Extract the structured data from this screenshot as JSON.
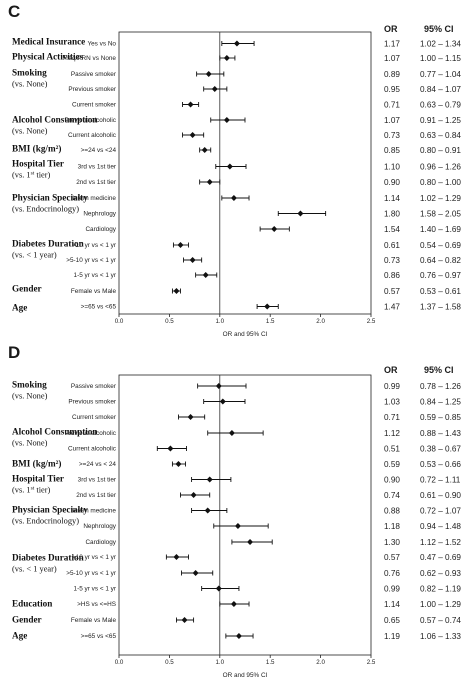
{
  "headers": {
    "or": "OR",
    "ci": "95% CI"
  },
  "chart_data": [
    {
      "type": "forest",
      "panel": "C",
      "xlabel": "OR and 95% CI",
      "xlim": [
        0,
        2.5
      ],
      "ticks": [
        "0.0",
        "0.5",
        "1.0",
        "1.5",
        "2.0",
        "2.5"
      ],
      "reference_line": 1.0,
      "groups": [
        {
          "title": "Medical Insurance",
          "subtitle": "",
          "rows": [
            {
              "label": "Yes vs No",
              "or": 1.17,
              "lo": 1.02,
              "hi": 1.34,
              "or_text": "1.17",
              "ci_text": "1.02 – 1.34"
            }
          ]
        },
        {
          "title": "Physical Activities",
          "subtitle": "",
          "rows": [
            {
              "label": "Freq/PRN vs None",
              "or": 1.07,
              "lo": 1.0,
              "hi": 1.15,
              "or_text": "1.07",
              "ci_text": "1.00 – 1.15"
            }
          ]
        },
        {
          "title": "Smoking",
          "subtitle": "(vs. None)",
          "rows": [
            {
              "label": "Passive smoker",
              "or": 0.89,
              "lo": 0.77,
              "hi": 1.04,
              "or_text": "0.89",
              "ci_text": "0.77 – 1.04"
            },
            {
              "label": "Previous smoker",
              "or": 0.95,
              "lo": 0.84,
              "hi": 1.07,
              "or_text": "0.95",
              "ci_text": "0.84 – 1.07"
            },
            {
              "label": "Current smoker",
              "or": 0.71,
              "lo": 0.63,
              "hi": 0.79,
              "or_text": "0.71",
              "ci_text": "0.63 – 0.79"
            }
          ]
        },
        {
          "title": "Alcohol Consumption",
          "subtitle": "(vs. None)",
          "rows": [
            {
              "label": "Previous alcoholic",
              "or": 1.07,
              "lo": 0.91,
              "hi": 1.25,
              "or_text": "1.07",
              "ci_text": "0.91 – 1.25"
            },
            {
              "label": "Current alcoholic",
              "or": 0.73,
              "lo": 0.63,
              "hi": 0.84,
              "or_text": "0.73",
              "ci_text": "0.63 – 0.84"
            }
          ]
        },
        {
          "title": "BMI (kg/m²)",
          "subtitle": "",
          "rows": [
            {
              "label": ">=24 vs <24",
              "or": 0.85,
              "lo": 0.8,
              "hi": 0.91,
              "or_text": "0.85",
              "ci_text": "0.80 – 0.91"
            }
          ]
        },
        {
          "title": "Hospital Tier",
          "subtitle": "(vs. 1st tier)",
          "rows": [
            {
              "label": "3rd vs 1st tier",
              "or": 1.1,
              "lo": 0.96,
              "hi": 1.26,
              "or_text": "1.10",
              "ci_text": "0.96 – 1.26"
            },
            {
              "label": "2nd vs 1st tier",
              "or": 0.9,
              "lo": 0.8,
              "hi": 1.0,
              "or_text": "0.90",
              "ci_text": "0.80 – 1.00"
            }
          ]
        },
        {
          "title": "Physician Specialty",
          "subtitle": "(vs. Endocrinology)",
          "rows": [
            {
              "label": "Intern medicine",
              "or": 1.14,
              "lo": 1.02,
              "hi": 1.29,
              "or_text": "1.14",
              "ci_text": "1.02 – 1.29"
            },
            {
              "label": "Nephrology",
              "or": 1.8,
              "lo": 1.58,
              "hi": 2.05,
              "or_text": "1.80",
              "ci_text": "1.58 – 2.05"
            },
            {
              "label": "Cardiology",
              "or": 1.54,
              "lo": 1.4,
              "hi": 1.69,
              "or_text": "1.54",
              "ci_text": "1.40 – 1.69"
            }
          ]
        },
        {
          "title": "Diabetes Duration",
          "subtitle": "(vs. < 1 year)",
          "rows": [
            {
              "label": ">10 yr vs < 1 yr",
              "or": 0.61,
              "lo": 0.54,
              "hi": 0.69,
              "or_text": "0.61",
              "ci_text": "0.54 – 0.69"
            },
            {
              "label": ">5-10 yr vs < 1 yr",
              "or": 0.73,
              "lo": 0.64,
              "hi": 0.82,
              "or_text": "0.73",
              "ci_text": "0.64 – 0.82"
            },
            {
              "label": "1-5 yr vs < 1 yr",
              "or": 0.86,
              "lo": 0.76,
              "hi": 0.97,
              "or_text": "0.86",
              "ci_text": "0.76 – 0.97"
            }
          ]
        },
        {
          "title": "Gender",
          "subtitle": "",
          "rows": [
            {
              "label": "Female vs Male",
              "or": 0.57,
              "lo": 0.53,
              "hi": 0.61,
              "or_text": "0.57",
              "ci_text": "0.53 – 0.61"
            }
          ]
        },
        {
          "title": "Age",
          "subtitle": "",
          "rows": [
            {
              "label": ">=65 vs <65",
              "or": 1.47,
              "lo": 1.37,
              "hi": 1.58,
              "or_text": "1.47",
              "ci_text": "1.37 – 1.58"
            }
          ]
        }
      ]
    },
    {
      "type": "forest",
      "panel": "D",
      "xlabel": "OR and 95% CI",
      "xlim": [
        0,
        2.5
      ],
      "ticks": [
        "0.0",
        "0.5",
        "1.0",
        "1.5",
        "2.0",
        "2.5"
      ],
      "reference_line": 1.0,
      "groups": [
        {
          "title": "Smoking",
          "subtitle": "(vs. None)",
          "rows": [
            {
              "label": "Passive smoker",
              "or": 0.99,
              "lo": 0.78,
              "hi": 1.26,
              "or_text": "0.99",
              "ci_text": "0.78 – 1.26"
            },
            {
              "label": "Previous smoker",
              "or": 1.03,
              "lo": 0.84,
              "hi": 1.25,
              "or_text": "1.03",
              "ci_text": "0.84 – 1.25"
            },
            {
              "label": "Current smoker",
              "or": 0.71,
              "lo": 0.59,
              "hi": 0.85,
              "or_text": "0.71",
              "ci_text": "0.59 – 0.85"
            }
          ]
        },
        {
          "title": "Alcohol Consumption",
          "subtitle": "(vs. None)",
          "rows": [
            {
              "label": "Previous alcoholic",
              "or": 1.12,
              "lo": 0.88,
              "hi": 1.43,
              "or_text": "1.12",
              "ci_text": "0.88 – 1.43"
            },
            {
              "label": "Current alcoholic",
              "or": 0.51,
              "lo": 0.38,
              "hi": 0.67,
              "or_text": "0.51",
              "ci_text": "0.38 – 0.67"
            }
          ]
        },
        {
          "title": "BMI (kg/m²)",
          "subtitle": "",
          "rows": [
            {
              "label": ">=24 vs < 24",
              "or": 0.59,
              "lo": 0.53,
              "hi": 0.66,
              "or_text": "0.59",
              "ci_text": "0.53 – 0.66"
            }
          ]
        },
        {
          "title": "Hospital Tier",
          "subtitle": "(vs. 1st tier)",
          "rows": [
            {
              "label": "3rd vs 1st tier",
              "or": 0.9,
              "lo": 0.72,
              "hi": 1.11,
              "or_text": "0.90",
              "ci_text": "0.72 – 1.11"
            },
            {
              "label": "2nd vs 1st tier",
              "or": 0.74,
              "lo": 0.61,
              "hi": 0.9,
              "or_text": "0.74",
              "ci_text": "0.61 – 0.90"
            }
          ]
        },
        {
          "title": "Physician Specialty",
          "subtitle": "(vs. Endocrinology)",
          "rows": [
            {
              "label": "Intern medicine",
              "or": 0.88,
              "lo": 0.72,
              "hi": 1.07,
              "or_text": "0.88",
              "ci_text": "0.72 – 1.07"
            },
            {
              "label": "Nephrology",
              "or": 1.18,
              "lo": 0.94,
              "hi": 1.48,
              "or_text": "1.18",
              "ci_text": "0.94 – 1.48"
            },
            {
              "label": "Cardiology",
              "or": 1.3,
              "lo": 1.12,
              "hi": 1.52,
              "or_text": "1.30",
              "ci_text": "1.12 – 1.52"
            }
          ]
        },
        {
          "title": "Diabetes Duration",
          "subtitle": "(vs. < 1 year)",
          "rows": [
            {
              "label": ">10 yr vs < 1 yr",
              "or": 0.57,
              "lo": 0.47,
              "hi": 0.69,
              "or_text": "0.57",
              "ci_text": "0.47 – 0.69"
            },
            {
              "label": ">5-10 yr vs < 1 yr",
              "or": 0.76,
              "lo": 0.62,
              "hi": 0.93,
              "or_text": "0.76",
              "ci_text": "0.62 – 0.93"
            },
            {
              "label": "1-5 yr vs < 1 yr",
              "or": 0.99,
              "lo": 0.82,
              "hi": 1.19,
              "or_text": "0.99",
              "ci_text": "0.82 – 1.19"
            }
          ]
        },
        {
          "title": "Education",
          "subtitle": "",
          "rows": [
            {
              "label": ">HS vs <=HS",
              "or": 1.14,
              "lo": 1.0,
              "hi": 1.29,
              "or_text": "1.14",
              "ci_text": "1.00 – 1.29"
            }
          ]
        },
        {
          "title": "Gender",
          "subtitle": "",
          "rows": [
            {
              "label": "Female vs Male",
              "or": 0.65,
              "lo": 0.57,
              "hi": 0.74,
              "or_text": "0.65",
              "ci_text": "0.57 – 0.74"
            }
          ]
        },
        {
          "title": "Age",
          "subtitle": "",
          "rows": [
            {
              "label": ">=65 vs <65",
              "or": 1.19,
              "lo": 1.06,
              "hi": 1.33,
              "or_text": "1.19",
              "ci_text": "1.06 – 1.33"
            }
          ]
        }
      ]
    }
  ]
}
